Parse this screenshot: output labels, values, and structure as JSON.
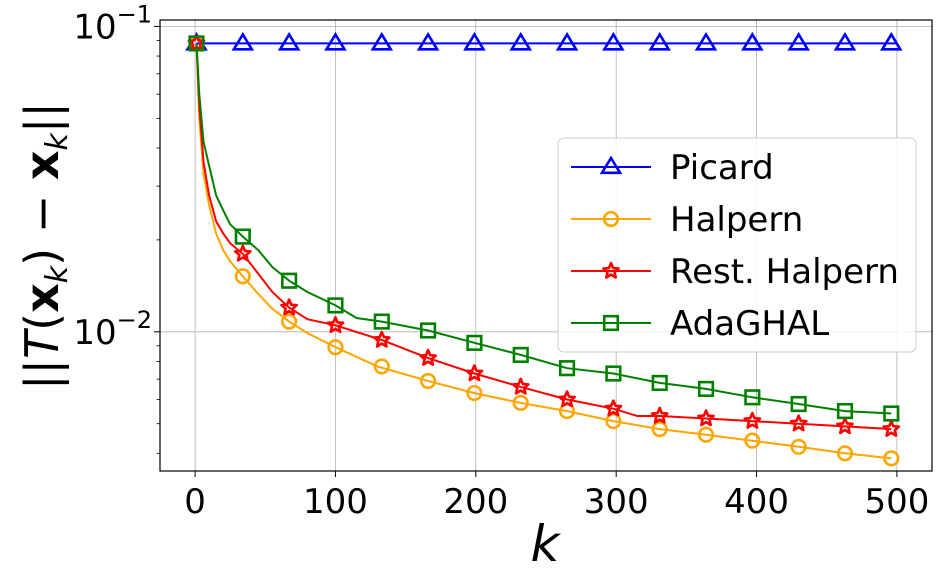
{
  "chart_data": {
    "type": "line",
    "yscale": "log",
    "xlabel": "k",
    "ylabel": "||T(x_k) - x_k||",
    "xlim": [
      -25,
      525
    ],
    "ylim": [
      0.0035,
      0.105
    ],
    "xticks": [
      0,
      100,
      200,
      300,
      400,
      500
    ],
    "yticks": [
      {
        "value": 0.01,
        "mantissa": "10",
        "exponent": "−2"
      },
      {
        "value": 0.1,
        "mantissa": "10",
        "exponent": "−1"
      }
    ],
    "grid": true,
    "legend_position": "center-right",
    "series": [
      {
        "name": "Picard",
        "color": "#0000ff",
        "marker": "triangle",
        "x": [
          1,
          500
        ],
        "y": [
          0.088,
          0.088
        ],
        "marker_x": [
          1,
          34,
          67,
          100,
          133,
          166,
          199,
          232,
          265,
          298,
          331,
          364,
          397,
          430,
          463,
          496
        ],
        "marker_y": [
          0.088,
          0.088,
          0.088,
          0.088,
          0.088,
          0.088,
          0.088,
          0.088,
          0.088,
          0.088,
          0.088,
          0.088,
          0.088,
          0.088,
          0.088,
          0.088
        ]
      },
      {
        "name": "Halpern",
        "color": "#ffa500",
        "marker": "circle",
        "x": [
          1,
          3,
          6,
          10,
          15,
          20,
          25,
          34,
          45,
          55,
          67,
          80,
          100,
          130,
          166,
          199,
          232,
          265,
          298,
          331,
          364,
          397,
          430,
          463,
          496
        ],
        "y": [
          0.088,
          0.05,
          0.033,
          0.026,
          0.021,
          0.0185,
          0.017,
          0.0152,
          0.0133,
          0.0119,
          0.0108,
          0.0099,
          0.0089,
          0.0077,
          0.0069,
          0.0063,
          0.00585,
          0.0055,
          0.0051,
          0.0048,
          0.0046,
          0.0044,
          0.0042,
          0.004,
          0.00385
        ],
        "marker_x": [
          1,
          34,
          67,
          100,
          133,
          166,
          199,
          232,
          265,
          298,
          331,
          364,
          397,
          430,
          463,
          496
        ],
        "marker_y": [
          0.088,
          0.0152,
          0.0108,
          0.0089,
          0.0077,
          0.0069,
          0.0063,
          0.00585,
          0.0055,
          0.0051,
          0.0048,
          0.0046,
          0.0044,
          0.0042,
          0.004,
          0.00385
        ]
      },
      {
        "name": "Rest. Halpern",
        "color": "#ff0000",
        "marker": "star",
        "x": [
          1,
          3,
          6,
          10,
          15,
          20,
          25,
          34,
          45,
          55,
          67,
          80,
          100,
          133,
          166,
          199,
          232,
          265,
          298,
          315,
          331,
          364,
          397,
          430,
          463,
          496
        ],
        "y": [
          0.088,
          0.055,
          0.036,
          0.028,
          0.023,
          0.021,
          0.0195,
          0.018,
          0.0155,
          0.0135,
          0.012,
          0.011,
          0.0105,
          0.0094,
          0.0082,
          0.0073,
          0.0066,
          0.006,
          0.0056,
          0.0053,
          0.0053,
          0.0052,
          0.0051,
          0.005,
          0.0049,
          0.0048
        ],
        "marker_x": [
          1,
          34,
          67,
          100,
          133,
          166,
          199,
          232,
          265,
          298,
          331,
          364,
          397,
          430,
          463,
          496
        ],
        "marker_y": [
          0.088,
          0.018,
          0.012,
          0.0105,
          0.0094,
          0.0082,
          0.0073,
          0.0066,
          0.006,
          0.0056,
          0.0053,
          0.0052,
          0.0051,
          0.005,
          0.0049,
          0.0048
        ]
      },
      {
        "name": "AdaGHAL",
        "color": "#008000",
        "marker": "square",
        "x": [
          1,
          3,
          6,
          10,
          15,
          20,
          25,
          34,
          45,
          55,
          67,
          80,
          100,
          115,
          133,
          166,
          199,
          232,
          265,
          298,
          331,
          364,
          397,
          430,
          463,
          496
        ],
        "y": [
          0.088,
          0.06,
          0.042,
          0.035,
          0.028,
          0.025,
          0.0225,
          0.0205,
          0.0185,
          0.0163,
          0.0147,
          0.0135,
          0.0122,
          0.0111,
          0.0108,
          0.0101,
          0.0092,
          0.0084,
          0.0076,
          0.0073,
          0.0068,
          0.0065,
          0.0061,
          0.0058,
          0.0055,
          0.0054
        ],
        "marker_x": [
          1,
          34,
          67,
          100,
          133,
          166,
          199,
          232,
          265,
          298,
          331,
          364,
          397,
          430,
          463,
          496
        ],
        "marker_y": [
          0.088,
          0.0205,
          0.0147,
          0.0122,
          0.0108,
          0.0101,
          0.0092,
          0.0084,
          0.0076,
          0.0073,
          0.0068,
          0.0065,
          0.0061,
          0.0058,
          0.0055,
          0.0054
        ]
      }
    ]
  }
}
